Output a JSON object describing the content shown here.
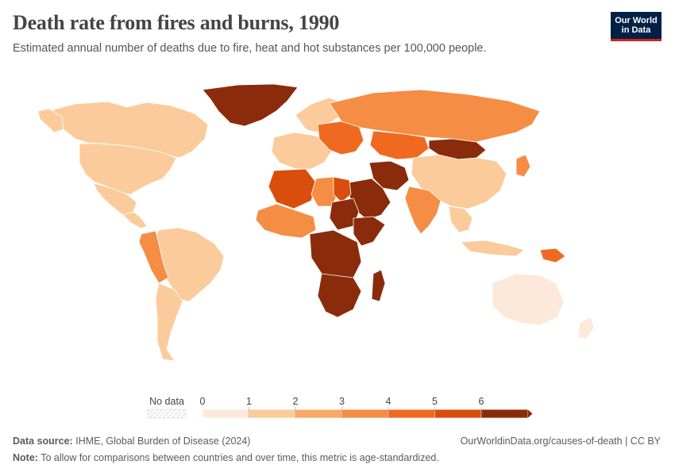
{
  "header": {
    "title": "Death rate from fires and burns, 1990",
    "subtitle": "Estimated annual number of deaths due to fire, heat and hot substances per 100,000 people."
  },
  "logo": {
    "line1": "Our World",
    "line2": "in Data"
  },
  "map": {
    "year": "1990",
    "colors": {
      "0-1": "#fde9d9",
      "1-2": "#fbcb9b",
      "2-3": "#f9a868",
      "3-4": "#f58d45",
      "4-5": "#ef6a20",
      "5-6": "#d94e0c",
      "6+": "#8a2c0b",
      "ocean": "#ffffff",
      "border": "#ffffff"
    },
    "regions": [
      {
        "name": "Canada",
        "bin": "1-2"
      },
      {
        "name": "United States",
        "bin": "1-2"
      },
      {
        "name": "Greenland",
        "bin": "6+"
      },
      {
        "name": "Mexico",
        "bin": "1-2"
      },
      {
        "name": "Brazil",
        "bin": "1-2"
      },
      {
        "name": "Bolivia",
        "bin": "3-4"
      },
      {
        "name": "Russia",
        "bin": "3-4"
      },
      {
        "name": "China",
        "bin": "1-2"
      },
      {
        "name": "Mongolia",
        "bin": "6+"
      },
      {
        "name": "Kazakhstan",
        "bin": "4-5"
      },
      {
        "name": "India",
        "bin": "3-4"
      },
      {
        "name": "Saudi Arabia",
        "bin": "6+"
      },
      {
        "name": "Iran",
        "bin": "6+"
      },
      {
        "name": "Algeria",
        "bin": "5-6"
      },
      {
        "name": "Libya",
        "bin": "3-4"
      },
      {
        "name": "Egypt",
        "bin": "5-6"
      },
      {
        "name": "Sudan",
        "bin": "6+"
      },
      {
        "name": "Ethiopia",
        "bin": "6+"
      },
      {
        "name": "DR Congo",
        "bin": "6+"
      },
      {
        "name": "South Africa",
        "bin": "6+"
      },
      {
        "name": "Madagascar",
        "bin": "6+"
      },
      {
        "name": "Australia",
        "bin": "0-1"
      },
      {
        "name": "Indonesia",
        "bin": "1-2"
      },
      {
        "name": "Papua New Guinea",
        "bin": "4-5"
      },
      {
        "name": "Western Europe",
        "bin": "1-2"
      },
      {
        "name": "Scandinavia",
        "bin": "1-2"
      }
    ]
  },
  "legend": {
    "no_data_label": "No data",
    "ticks": [
      "0",
      "1",
      "2",
      "3",
      "4",
      "5",
      "6"
    ],
    "bins": [
      "0-1",
      "1-2",
      "2-3",
      "3-4",
      "4-5",
      "5-6",
      "6+"
    ]
  },
  "footer": {
    "source_label": "Data source:",
    "source_text": "IHME, Global Burden of Disease (2024)",
    "url": "OurWorldinData.org/causes-of-death | CC BY",
    "note_label": "Note:",
    "note_text": "To allow for comparisons between countries and over time, this metric is age-standardized."
  }
}
